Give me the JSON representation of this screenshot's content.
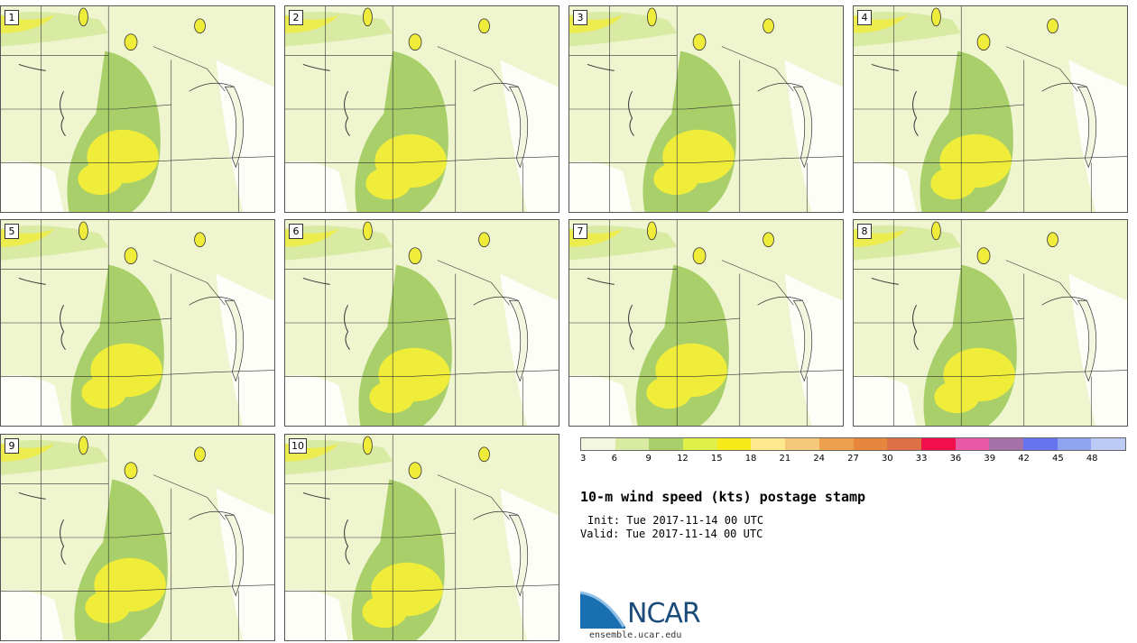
{
  "panels": [
    {
      "label": "1"
    },
    {
      "label": "2"
    },
    {
      "label": "3"
    },
    {
      "label": "4"
    },
    {
      "label": "5"
    },
    {
      "label": "6"
    },
    {
      "label": "7"
    },
    {
      "label": "8"
    },
    {
      "label": "9"
    },
    {
      "label": "10"
    }
  ],
  "colorbar": {
    "colors": [
      "#f4f7e0",
      "#d9eba3",
      "#a8cf6a",
      "#dff04a",
      "#f7ea1a",
      "#ffe98f",
      "#f6c97a",
      "#eea14c",
      "#e7873e",
      "#de7047",
      "#f20f4c",
      "#e85aa8",
      "#a572a8",
      "#6674f0",
      "#8fa3f0",
      "#bccbf5"
    ],
    "ticks": [
      "3",
      "6",
      "9",
      "12",
      "15",
      "18",
      "21",
      "24",
      "27",
      "30",
      "33",
      "36",
      "39",
      "42",
      "45",
      "48"
    ]
  },
  "title": "10-m wind speed (kts) postage stamp",
  "init_text": "Init: Tue 2017-11-14 00 UTC",
  "valid_text": "Valid: Tue 2017-11-14 00 UTC",
  "logo": {
    "name": "NCAR",
    "url_text": "ensemble.ucar.edu"
  },
  "map_colors": {
    "calm": "#ffffff",
    "light": "#eef5cf",
    "medium": "#d9eba3",
    "strong": "#a8cf6a",
    "high": "#f0ec3a",
    "lake": "#f4f7e0"
  }
}
